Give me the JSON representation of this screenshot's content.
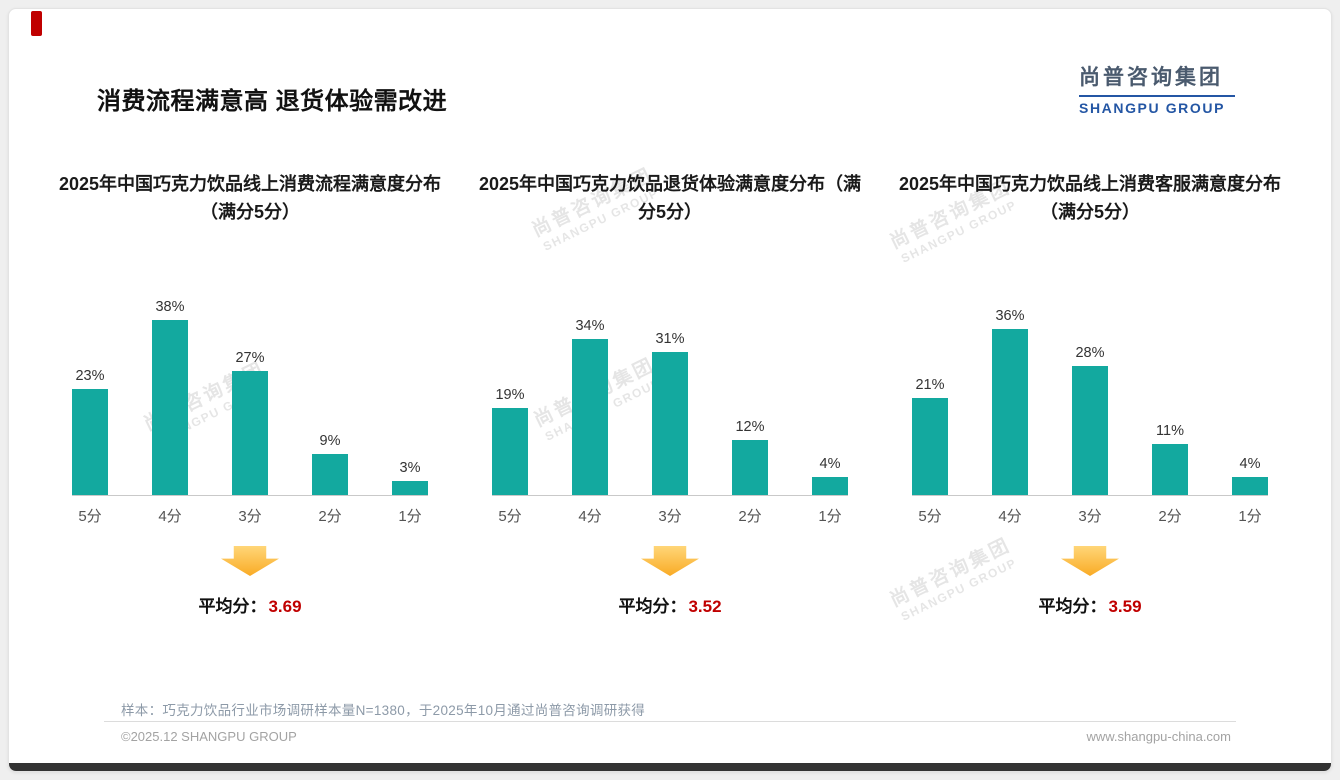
{
  "page": {
    "title": "消费流程满意高 退货体验需改进",
    "logo_cn": "尚普咨询集团",
    "logo_en": "SHANGPU GROUP",
    "watermark_cn": "尚普咨询集团",
    "watermark_en": "SHANGPU GROUP",
    "footnote": "样本：巧克力饮品行业市场调研样本量N=1380，于2025年10月通过尚普咨询调研获得",
    "footer_left": "©2025.12 SHANGPU GROUP",
    "footer_right": "www.shangpu-china.com"
  },
  "colors": {
    "bar_teal": "#13a99f",
    "avg_red": "#c00000",
    "logo_blue": "#2456a4",
    "arrow_yellow": "#fbb03b",
    "accent_red": "#c00000"
  },
  "chart_data": [
    {
      "type": "bar",
      "title": "2025年中国巧克力饮品线上消费流程满意度分布（满分5分）",
      "categories": [
        "5分",
        "4分",
        "3分",
        "2分",
        "1分"
      ],
      "values": [
        23,
        38,
        27,
        9,
        3
      ],
      "unit": "%",
      "ylim": [
        0,
        40
      ],
      "grid": false,
      "average_label": "平均分：",
      "average": "3.69"
    },
    {
      "type": "bar",
      "title": "2025年中国巧克力饮品退货体验满意度分布（满分5分）",
      "categories": [
        "5分",
        "4分",
        "3分",
        "2分",
        "1分"
      ],
      "values": [
        19,
        34,
        31,
        12,
        4
      ],
      "unit": "%",
      "ylim": [
        0,
        40
      ],
      "grid": false,
      "average_label": "平均分：",
      "average": "3.52"
    },
    {
      "type": "bar",
      "title": "2025年中国巧克力饮品线上消费客服满意度分布（满分5分）",
      "categories": [
        "5分",
        "4分",
        "3分",
        "2分",
        "1分"
      ],
      "values": [
        21,
        36,
        28,
        11,
        4
      ],
      "unit": "%",
      "ylim": [
        0,
        40
      ],
      "grid": false,
      "average_label": "平均分：",
      "average": "3.59"
    }
  ]
}
